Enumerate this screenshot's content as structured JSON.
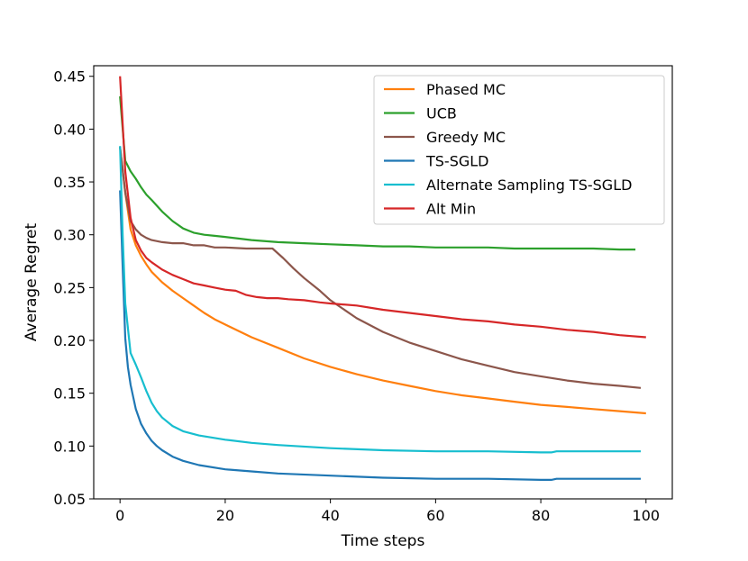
{
  "chart_data": {
    "type": "line",
    "title": "",
    "xlabel": "Time steps",
    "ylabel": "Average Regret",
    "xlim": [
      -5,
      105
    ],
    "ylim": [
      0.05,
      0.46
    ],
    "xticks": [
      0,
      20,
      40,
      60,
      80,
      100
    ],
    "yticks": [
      0.05,
      0.1,
      0.15,
      0.2,
      0.25,
      0.3,
      0.35,
      0.4,
      0.45
    ],
    "ytick_labels": [
      "0.05",
      "0.10",
      "0.15",
      "0.20",
      "0.25",
      "0.30",
      "0.35",
      "0.40",
      "0.45"
    ],
    "grid": false,
    "legend_position": "top-right",
    "series": [
      {
        "name": "Phased MC",
        "color": "#ff7f0e",
        "points": [
          [
            0,
            0.383
          ],
          [
            1,
            0.34
          ],
          [
            2,
            0.305
          ],
          [
            3,
            0.29
          ],
          [
            4,
            0.28
          ],
          [
            5,
            0.272
          ],
          [
            6,
            0.265
          ],
          [
            8,
            0.255
          ],
          [
            10,
            0.247
          ],
          [
            12,
            0.24
          ],
          [
            14,
            0.233
          ],
          [
            16,
            0.226
          ],
          [
            18,
            0.22
          ],
          [
            20,
            0.215
          ],
          [
            25,
            0.203
          ],
          [
            30,
            0.193
          ],
          [
            35,
            0.183
          ],
          [
            40,
            0.175
          ],
          [
            45,
            0.168
          ],
          [
            50,
            0.162
          ],
          [
            55,
            0.157
          ],
          [
            60,
            0.152
          ],
          [
            65,
            0.148
          ],
          [
            70,
            0.145
          ],
          [
            75,
            0.142
          ],
          [
            80,
            0.139
          ],
          [
            85,
            0.137
          ],
          [
            90,
            0.135
          ],
          [
            95,
            0.133
          ],
          [
            100,
            0.131
          ]
        ]
      },
      {
        "name": "UCB",
        "color": "#2ca02c",
        "points": [
          [
            0,
            0.431
          ],
          [
            1,
            0.37
          ],
          [
            2,
            0.36
          ],
          [
            3,
            0.353
          ],
          [
            4,
            0.345
          ],
          [
            5,
            0.338
          ],
          [
            6,
            0.333
          ],
          [
            8,
            0.322
          ],
          [
            10,
            0.313
          ],
          [
            12,
            0.306
          ],
          [
            14,
            0.302
          ],
          [
            16,
            0.3
          ],
          [
            18,
            0.299
          ],
          [
            20,
            0.298
          ],
          [
            25,
            0.295
          ],
          [
            30,
            0.293
          ],
          [
            35,
            0.292
          ],
          [
            40,
            0.291
          ],
          [
            45,
            0.29
          ],
          [
            50,
            0.289
          ],
          [
            55,
            0.289
          ],
          [
            60,
            0.288
          ],
          [
            65,
            0.288
          ],
          [
            70,
            0.288
          ],
          [
            75,
            0.287
          ],
          [
            80,
            0.287
          ],
          [
            85,
            0.287
          ],
          [
            90,
            0.287
          ],
          [
            95,
            0.286
          ],
          [
            98,
            0.286
          ]
        ]
      },
      {
        "name": "Greedy MC",
        "color": "#8c564b",
        "points": [
          [
            0,
            0.383
          ],
          [
            1,
            0.34
          ],
          [
            2,
            0.313
          ],
          [
            3,
            0.305
          ],
          [
            4,
            0.3
          ],
          [
            5,
            0.297
          ],
          [
            6,
            0.295
          ],
          [
            8,
            0.293
          ],
          [
            10,
            0.292
          ],
          [
            12,
            0.292
          ],
          [
            14,
            0.29
          ],
          [
            16,
            0.29
          ],
          [
            18,
            0.288
          ],
          [
            20,
            0.288
          ],
          [
            24,
            0.287
          ],
          [
            28,
            0.287
          ],
          [
            29,
            0.287
          ],
          [
            31,
            0.278
          ],
          [
            33,
            0.268
          ],
          [
            35,
            0.259
          ],
          [
            38,
            0.247
          ],
          [
            40,
            0.238
          ],
          [
            45,
            0.221
          ],
          [
            50,
            0.208
          ],
          [
            55,
            0.198
          ],
          [
            60,
            0.19
          ],
          [
            65,
            0.182
          ],
          [
            70,
            0.176
          ],
          [
            75,
            0.17
          ],
          [
            80,
            0.166
          ],
          [
            85,
            0.162
          ],
          [
            90,
            0.159
          ],
          [
            95,
            0.157
          ],
          [
            99,
            0.155
          ]
        ]
      },
      {
        "name": "TS-SGLD",
        "color": "#1f77b4",
        "points": [
          [
            0,
            0.342
          ],
          [
            0.5,
            0.27
          ],
          [
            1,
            0.202
          ],
          [
            1.5,
            0.175
          ],
          [
            2,
            0.158
          ],
          [
            3,
            0.135
          ],
          [
            4,
            0.121
          ],
          [
            5,
            0.112
          ],
          [
            6,
            0.105
          ],
          [
            7,
            0.1
          ],
          [
            8,
            0.096
          ],
          [
            10,
            0.09
          ],
          [
            12,
            0.086
          ],
          [
            15,
            0.082
          ],
          [
            20,
            0.078
          ],
          [
            25,
            0.076
          ],
          [
            30,
            0.074
          ],
          [
            40,
            0.072
          ],
          [
            50,
            0.07
          ],
          [
            60,
            0.069
          ],
          [
            70,
            0.069
          ],
          [
            80,
            0.068
          ],
          [
            82,
            0.068
          ],
          [
            83,
            0.069
          ],
          [
            90,
            0.069
          ],
          [
            95,
            0.069
          ],
          [
            99,
            0.069
          ]
        ]
      },
      {
        "name": "Alternate Sampling TS-SGLD",
        "color": "#17becf",
        "points": [
          [
            0,
            0.384
          ],
          [
            0.5,
            0.3
          ],
          [
            1,
            0.235
          ],
          [
            2,
            0.188
          ],
          [
            3,
            0.177
          ],
          [
            4,
            0.165
          ],
          [
            5,
            0.152
          ],
          [
            6,
            0.141
          ],
          [
            7,
            0.133
          ],
          [
            8,
            0.127
          ],
          [
            10,
            0.119
          ],
          [
            12,
            0.114
          ],
          [
            15,
            0.11
          ],
          [
            20,
            0.106
          ],
          [
            25,
            0.103
          ],
          [
            30,
            0.101
          ],
          [
            40,
            0.098
          ],
          [
            50,
            0.096
          ],
          [
            60,
            0.095
          ],
          [
            70,
            0.095
          ],
          [
            80,
            0.094
          ],
          [
            82,
            0.094
          ],
          [
            83,
            0.095
          ],
          [
            90,
            0.095
          ],
          [
            99,
            0.095
          ]
        ]
      },
      {
        "name": "Alt Min",
        "color": "#d62728",
        "points": [
          [
            0,
            0.45
          ],
          [
            1,
            0.36
          ],
          [
            2,
            0.316
          ],
          [
            3,
            0.295
          ],
          [
            4,
            0.285
          ],
          [
            5,
            0.278
          ],
          [
            6,
            0.274
          ],
          [
            8,
            0.267
          ],
          [
            10,
            0.262
          ],
          [
            12,
            0.258
          ],
          [
            14,
            0.254
          ],
          [
            16,
            0.252
          ],
          [
            18,
            0.25
          ],
          [
            20,
            0.248
          ],
          [
            22,
            0.247
          ],
          [
            24,
            0.243
          ],
          [
            26,
            0.241
          ],
          [
            28,
            0.24
          ],
          [
            30,
            0.24
          ],
          [
            32,
            0.239
          ],
          [
            35,
            0.238
          ],
          [
            38,
            0.236
          ],
          [
            40,
            0.235
          ],
          [
            45,
            0.233
          ],
          [
            50,
            0.229
          ],
          [
            55,
            0.226
          ],
          [
            60,
            0.223
          ],
          [
            65,
            0.22
          ],
          [
            70,
            0.218
          ],
          [
            75,
            0.215
          ],
          [
            80,
            0.213
          ],
          [
            85,
            0.21
          ],
          [
            90,
            0.208
          ],
          [
            95,
            0.205
          ],
          [
            100,
            0.203
          ]
        ]
      }
    ]
  }
}
